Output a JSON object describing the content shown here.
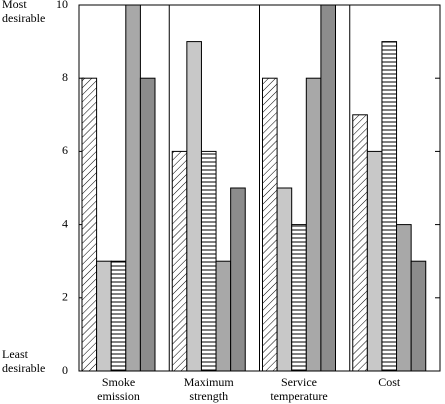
{
  "chart_data": {
    "type": "bar",
    "annotations": {
      "top": "Most desirable",
      "bottom": "Least desirable"
    },
    "categories": [
      "Smoke emission",
      "Maximum strength",
      "Service temperature",
      "Cost"
    ],
    "series": [
      {
        "color": "#ffffff",
        "pattern": "diagonal",
        "values": [
          8,
          6,
          8,
          7
        ]
      },
      {
        "color": "#c8c8c8",
        "values": [
          3,
          9,
          5,
          6
        ]
      },
      {
        "color": "#ffffff",
        "pattern": "horizontal",
        "values": [
          3,
          6,
          4,
          9
        ]
      },
      {
        "color": "#a8a8a8",
        "values": [
          10,
          3,
          8,
          4
        ]
      },
      {
        "color": "#8c8c8c",
        "values": [
          8,
          5,
          10,
          3
        ]
      }
    ],
    "ylim": [
      0,
      10
    ],
    "yticks": [
      0,
      2,
      4,
      6,
      8,
      10
    ],
    "grid": false
  }
}
